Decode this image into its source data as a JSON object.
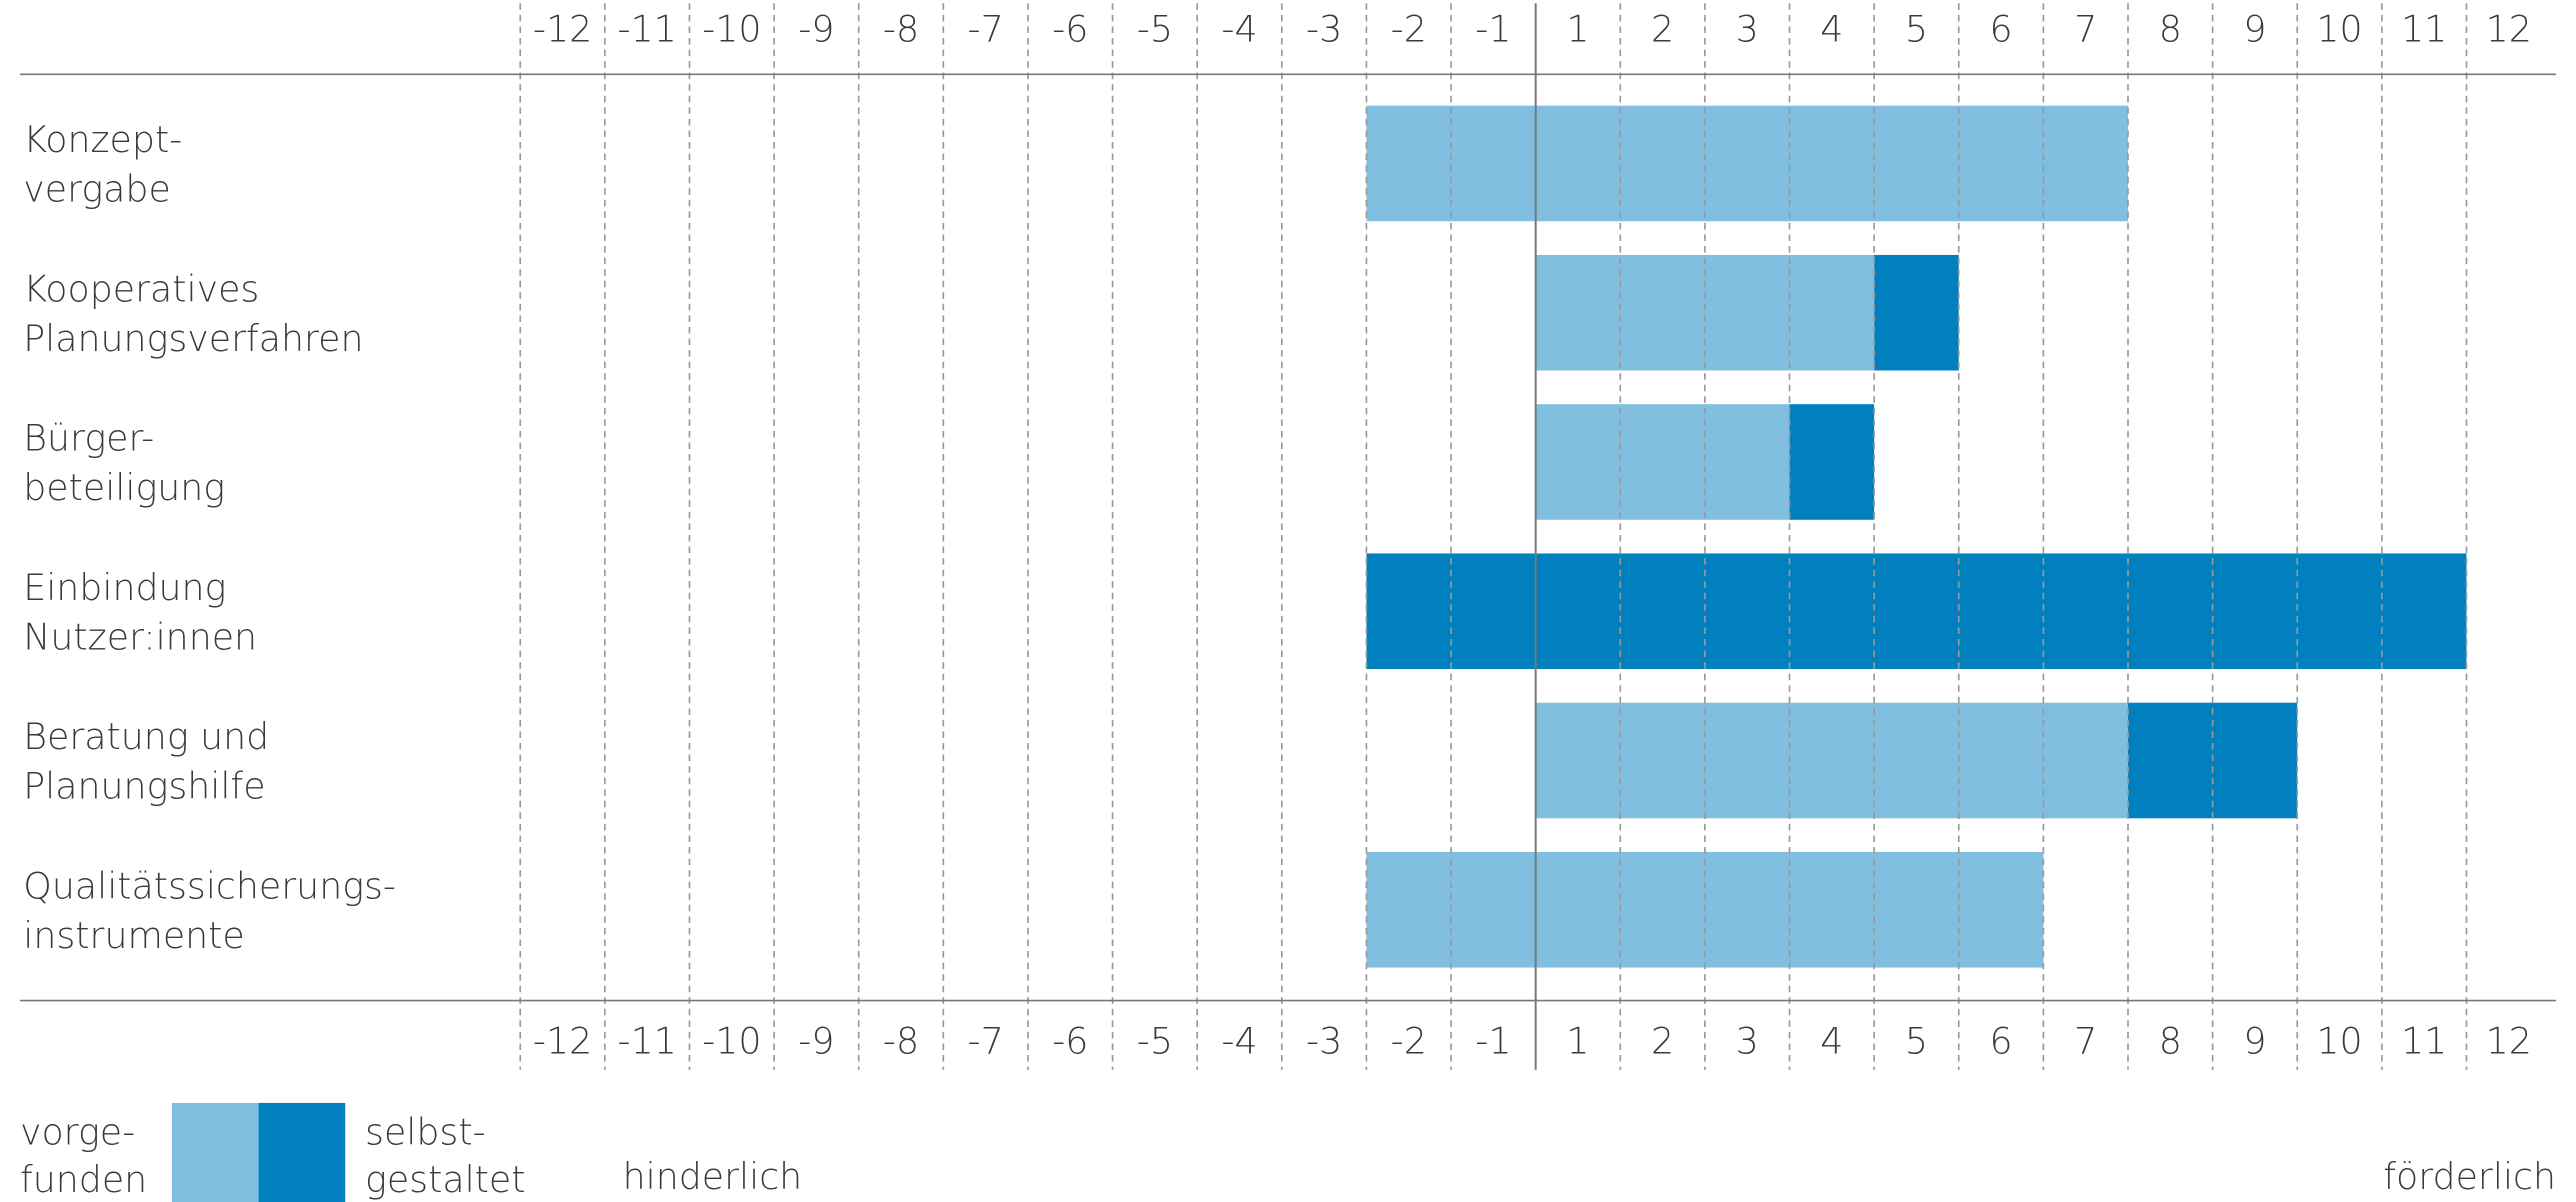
{
  "chart_data": {
    "type": "range_bar",
    "categories": [
      [
        "Konzept-",
        "vergabe"
      ],
      [
        "Kooperatives",
        "Planungsverfahren"
      ],
      [
        "Bürger-",
        "beteiligung"
      ],
      [
        "Einbindung",
        "Nutzer:innen"
      ],
      [
        "Beratung und",
        "Planungshilfe"
      ],
      [
        "Qualitätssicherungs-",
        "instrumente"
      ]
    ],
    "xticks": [
      -12,
      -11,
      -10,
      -9,
      -8,
      -7,
      -6,
      -5,
      -4,
      -3,
      -2,
      -1,
      1,
      2,
      3,
      4,
      5,
      6,
      7,
      8,
      9,
      10,
      11,
      12
    ],
    "series": [
      {
        "name": [
          "vorge-",
          "funden"
        ],
        "color": "#80bfdf",
        "values": [
          [
            -2,
            7
          ],
          [
            1,
            4
          ],
          [
            1,
            3
          ],
          null,
          [
            1,
            7
          ],
          [
            -2,
            6
          ]
        ]
      },
      {
        "name": [
          "selbst-",
          "gestaltet"
        ],
        "color": "#0080bf",
        "values": [
          null,
          [
            5,
            5
          ],
          [
            4,
            4
          ],
          [
            -2,
            11
          ],
          [
            8,
            9
          ],
          null
        ]
      }
    ],
    "axis_left_label": "hinderlich",
    "axis_right_label": "förderlich",
    "grid": true
  }
}
